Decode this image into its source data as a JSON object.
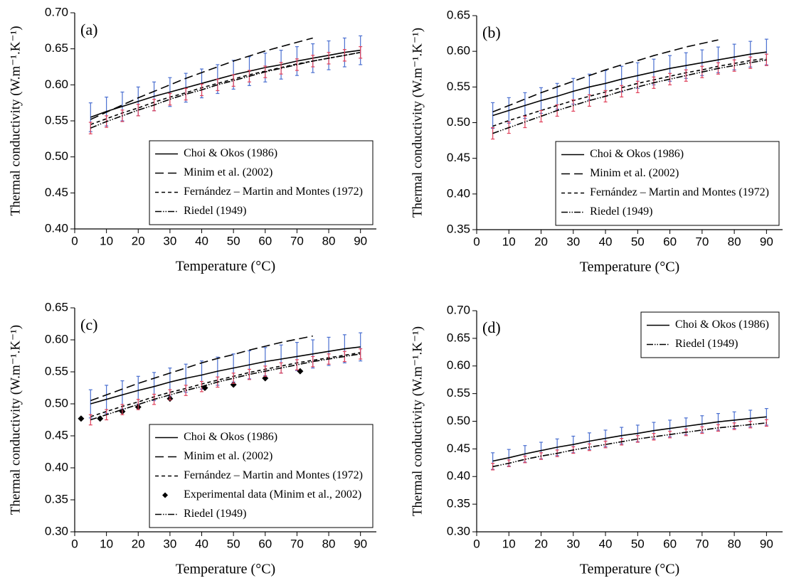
{
  "chart_data": [
    {
      "type": "line",
      "annotation": "(a)",
      "xlabel": "Temperature (°C)",
      "ylabel": "Thermal conductivity (W.m⁻¹.K⁻¹)",
      "x": [
        5,
        10,
        15,
        20,
        25,
        30,
        35,
        40,
        45,
        50,
        55,
        60,
        65,
        70,
        75,
        80,
        85,
        90
      ],
      "xlim": [
        0,
        95
      ],
      "xticks": [
        0,
        10,
        20,
        30,
        40,
        50,
        60,
        70,
        80,
        90
      ],
      "ylim": [
        0.4,
        0.7
      ],
      "yticks": [
        {
          "value": 0.4,
          "label": "0.40"
        },
        0.45,
        {
          "value": 0.5,
          "label": "0.50"
        },
        0.55,
        {
          "value": 0.6,
          "label": "0.60"
        },
        0.65,
        {
          "value": 0.7,
          "label": "0.70"
        }
      ],
      "legend": "lower right",
      "series": [
        {
          "name": "Choi & Okos (1986)",
          "color": "#000000",
          "style": "solid",
          "values": [
            0.555,
            0.563,
            0.57,
            0.577,
            0.584,
            0.59,
            0.596,
            0.602,
            0.608,
            0.614,
            0.619,
            0.624,
            0.628,
            0.633,
            0.637,
            0.641,
            0.645,
            0.648
          ],
          "errors": [
            0.02,
            0.02,
            0.02,
            0.02,
            0.02,
            0.02,
            0.02,
            0.02,
            0.02,
            0.02,
            0.02,
            0.02,
            0.02,
            0.02,
            0.02,
            0.02,
            0.02,
            0.02
          ],
          "error_color": "#4a6fd0"
        },
        {
          "name": "Minim et al. (2002)",
          "color": "#000000",
          "style": "dashed",
          "values": [
            0.552,
            0.562,
            0.572,
            0.582,
            0.591,
            0.6,
            0.609,
            0.617,
            0.625,
            0.633,
            0.64,
            0.647,
            0.653,
            0.659,
            0.665,
            null,
            null,
            null
          ]
        },
        {
          "name": "Fernández – Martin and Montes (1972)",
          "color": "#000000",
          "style": "shortdash",
          "values": [
            0.545,
            0.553,
            0.561,
            0.568,
            0.576,
            0.583,
            0.589,
            0.596,
            0.602,
            0.608,
            0.614,
            0.619,
            0.624,
            0.629,
            0.633,
            0.637,
            0.641,
            0.645
          ]
        },
        {
          "name": "Riedel (1949)",
          "color": "#000000",
          "style": "dashdotdot",
          "values": [
            0.54,
            0.549,
            0.557,
            0.565,
            0.572,
            0.58,
            0.587,
            0.593,
            0.6,
            0.606,
            0.612,
            0.618,
            0.623,
            0.628,
            0.633,
            0.637,
            0.641,
            0.645
          ],
          "errors": [
            0.008,
            0.008,
            0.008,
            0.008,
            0.008,
            0.008,
            0.008,
            0.008,
            0.008,
            0.008,
            0.008,
            0.008,
            0.008,
            0.008,
            0.008,
            0.008,
            0.008,
            0.008
          ],
          "error_color": "#e0405a"
        }
      ]
    },
    {
      "type": "line",
      "annotation": "(b)",
      "xlabel": "Temperature (°C)",
      "ylabel": "Thermal conductivity (W.m⁻¹.K⁻¹)",
      "x": [
        5,
        10,
        15,
        20,
        25,
        30,
        35,
        40,
        45,
        50,
        55,
        60,
        65,
        70,
        75,
        80,
        85,
        90
      ],
      "xlim": [
        0,
        95
      ],
      "xticks": [
        0,
        10,
        20,
        30,
        40,
        50,
        60,
        70,
        80,
        90
      ],
      "ylim": [
        0.35,
        0.65
      ],
      "yticks": [
        0.35,
        {
          "value": 0.4,
          "label": "0.40"
        },
        0.45,
        {
          "value": 0.5,
          "label": "0.50"
        },
        0.55,
        {
          "value": 0.6,
          "label": "0.60"
        },
        0.65
      ],
      "legend": "lower right",
      "series": [
        {
          "name": "Choi & Okos (1986)",
          "color": "#000000",
          "style": "solid",
          "values": [
            0.51,
            0.517,
            0.524,
            0.531,
            0.537,
            0.544,
            0.55,
            0.555,
            0.561,
            0.566,
            0.571,
            0.576,
            0.58,
            0.584,
            0.588,
            0.592,
            0.596,
            0.599
          ],
          "errors": [
            0.018,
            0.018,
            0.018,
            0.018,
            0.018,
            0.018,
            0.018,
            0.018,
            0.018,
            0.018,
            0.018,
            0.018,
            0.018,
            0.018,
            0.018,
            0.018,
            0.018,
            0.018
          ],
          "error_color": "#4a6fd0"
        },
        {
          "name": "Minim et al. (2002)",
          "color": "#000000",
          "style": "dashed",
          "values": [
            0.515,
            0.524,
            0.533,
            0.542,
            0.55,
            0.558,
            0.566,
            0.574,
            0.581,
            0.587,
            0.594,
            0.6,
            0.606,
            0.611,
            0.616,
            null,
            null,
            null
          ]
        },
        {
          "name": "Fernández – Martin and Montes (1972)",
          "color": "#000000",
          "style": "shortdash",
          "values": [
            0.495,
            0.503,
            0.51,
            0.517,
            0.524,
            0.531,
            0.537,
            0.543,
            0.549,
            0.555,
            0.56,
            0.565,
            0.57,
            0.574,
            0.579,
            0.583,
            0.587,
            0.59
          ]
        },
        {
          "name": "Riedel (1949)",
          "color": "#000000",
          "style": "dashdotdot",
          "values": [
            0.485,
            0.493,
            0.501,
            0.509,
            0.517,
            0.524,
            0.531,
            0.537,
            0.544,
            0.55,
            0.556,
            0.561,
            0.566,
            0.571,
            0.576,
            0.58,
            0.584,
            0.588
          ],
          "errors": [
            0.008,
            0.008,
            0.008,
            0.008,
            0.008,
            0.008,
            0.008,
            0.008,
            0.008,
            0.008,
            0.008,
            0.008,
            0.008,
            0.008,
            0.008,
            0.008,
            0.008,
            0.008
          ],
          "error_color": "#e0405a"
        }
      ]
    },
    {
      "type": "line",
      "annotation": "(c)",
      "xlabel": "Temperature (°C)",
      "ylabel": "Thermal conductivity (W.m⁻¹.K⁻¹)",
      "x": [
        5,
        10,
        15,
        20,
        25,
        30,
        35,
        40,
        45,
        50,
        55,
        60,
        65,
        70,
        75,
        80,
        85,
        90
      ],
      "xlim": [
        0,
        95
      ],
      "xticks": [
        0,
        10,
        20,
        30,
        40,
        50,
        60,
        70,
        80,
        90
      ],
      "ylim": [
        0.3,
        0.65
      ],
      "yticks": [
        {
          "value": 0.3,
          "label": "0.30"
        },
        0.35,
        {
          "value": 0.4,
          "label": "0.40"
        },
        0.45,
        {
          "value": 0.5,
          "label": "0.50"
        },
        0.55,
        {
          "value": 0.6,
          "label": "0.60"
        },
        0.65
      ],
      "legend": "lower right",
      "series": [
        {
          "name": "Choi & Okos (1986)",
          "color": "#000000",
          "style": "solid",
          "values": [
            0.5,
            0.507,
            0.514,
            0.521,
            0.527,
            0.534,
            0.54,
            0.545,
            0.551,
            0.556,
            0.561,
            0.566,
            0.57,
            0.574,
            0.578,
            0.582,
            0.586,
            0.589
          ],
          "errors": [
            0.022,
            0.022,
            0.022,
            0.022,
            0.022,
            0.022,
            0.022,
            0.022,
            0.022,
            0.022,
            0.022,
            0.022,
            0.022,
            0.022,
            0.022,
            0.022,
            0.022,
            0.022
          ],
          "error_color": "#4a6fd0"
        },
        {
          "name": "Minim et al. (2002)",
          "color": "#000000",
          "style": "dashed",
          "values": [
            0.505,
            0.514,
            0.523,
            0.532,
            0.54,
            0.548,
            0.556,
            0.564,
            0.571,
            0.577,
            0.584,
            0.59,
            0.596,
            0.601,
            0.606,
            null,
            null,
            null
          ]
        },
        {
          "name": "Fernández – Martin and Montes (1972)",
          "color": "#000000",
          "style": "shortdash",
          "values": [
            0.48,
            0.488,
            0.496,
            0.503,
            0.511,
            0.518,
            0.524,
            0.531,
            0.537,
            0.543,
            0.549,
            0.554,
            0.559,
            0.564,
            0.568,
            0.572,
            0.576,
            0.58
          ]
        },
        {
          "name": "Experimental data (Minim et al., 2002)",
          "type": "scatter",
          "marker": "diamond",
          "color": "#000000",
          "x": [
            2,
            8,
            15,
            20,
            30,
            41,
            50,
            60,
            71
          ],
          "values": [
            0.477,
            0.477,
            0.488,
            0.495,
            0.508,
            0.525,
            0.53,
            0.54,
            0.551
          ]
        },
        {
          "name": "Riedel (1949)",
          "color": "#000000",
          "style": "dashdotdot",
          "values": [
            0.475,
            0.483,
            0.491,
            0.499,
            0.507,
            0.514,
            0.521,
            0.527,
            0.534,
            0.54,
            0.546,
            0.551,
            0.556,
            0.561,
            0.566,
            0.57,
            0.574,
            0.578
          ],
          "errors": [
            0.008,
            0.008,
            0.008,
            0.008,
            0.008,
            0.008,
            0.008,
            0.008,
            0.008,
            0.008,
            0.008,
            0.008,
            0.008,
            0.008,
            0.008,
            0.008,
            0.008,
            0.008
          ],
          "error_color": "#e0405a"
        }
      ]
    },
    {
      "type": "line",
      "annotation": "(d)",
      "xlabel": "Temperature (°C)",
      "ylabel": "Thermal conductivity (W.m⁻¹.K⁻¹)",
      "x": [
        5,
        10,
        15,
        20,
        25,
        30,
        35,
        40,
        45,
        50,
        55,
        60,
        65,
        70,
        75,
        80,
        85,
        90
      ],
      "xlim": [
        0,
        95
      ],
      "xticks": [
        0,
        10,
        20,
        30,
        40,
        50,
        60,
        70,
        80,
        90
      ],
      "ylim": [
        0.3,
        0.7
      ],
      "yticks": [
        {
          "value": 0.3,
          "label": "0.30"
        },
        0.35,
        {
          "value": 0.4,
          "label": "0.40"
        },
        0.45,
        {
          "value": 0.5,
          "label": "0.50"
        },
        0.55,
        {
          "value": 0.6,
          "label": "0.60"
        },
        0.65,
        {
          "value": 0.7,
          "label": "0.70"
        }
      ],
      "legend": "upper right",
      "series": [
        {
          "name": "Choi & Okos (1986)",
          "color": "#000000",
          "style": "solid",
          "values": [
            0.428,
            0.434,
            0.441,
            0.447,
            0.453,
            0.458,
            0.464,
            0.469,
            0.474,
            0.478,
            0.483,
            0.487,
            0.491,
            0.495,
            0.499,
            0.502,
            0.505,
            0.508
          ],
          "errors": [
            0.015,
            0.015,
            0.015,
            0.015,
            0.015,
            0.015,
            0.015,
            0.015,
            0.015,
            0.015,
            0.015,
            0.015,
            0.015,
            0.015,
            0.015,
            0.015,
            0.015,
            0.015
          ],
          "error_color": "#4a6fd0"
        },
        {
          "name": "Riedel (1949)",
          "color": "#000000",
          "style": "dashdotdot",
          "values": [
            0.418,
            0.424,
            0.431,
            0.437,
            0.442,
            0.448,
            0.453,
            0.458,
            0.463,
            0.468,
            0.472,
            0.476,
            0.48,
            0.484,
            0.488,
            0.491,
            0.494,
            0.497
          ],
          "errors": [
            0.006,
            0.006,
            0.006,
            0.006,
            0.006,
            0.006,
            0.006,
            0.006,
            0.006,
            0.006,
            0.006,
            0.006,
            0.006,
            0.006,
            0.006,
            0.006,
            0.006,
            0.006
          ],
          "error_color": "#e0405a"
        }
      ]
    }
  ]
}
